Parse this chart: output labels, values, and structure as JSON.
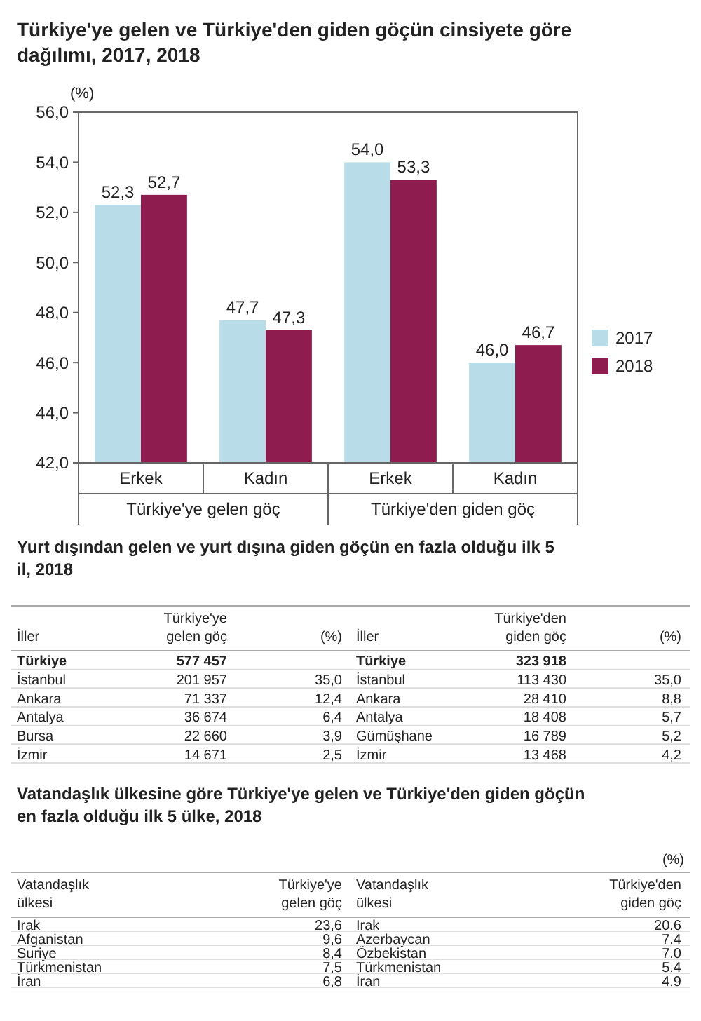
{
  "chart_data": [
    {
      "type": "bar",
      "title": "Türkiye'ye gelen ve Türkiye'den giden göçün cinsiyete göre dağılımı, 2017, 2018",
      "ylabel": "(%)",
      "categories": [
        "Erkek",
        "Kadın",
        "Erkek",
        "Kadın"
      ],
      "series": [
        {
          "name": "2017",
          "color": "#b8dde9",
          "values": [
            52.3,
            47.7,
            54.0,
            46.0
          ],
          "value_labels": [
            "52,3",
            "47,7",
            "54,0",
            "46,0"
          ]
        },
        {
          "name": "2018",
          "color": "#8e1c4f",
          "values": [
            52.7,
            47.3,
            53.3,
            46.7
          ],
          "value_labels": [
            "52,7",
            "47,3",
            "53,3",
            "46,7"
          ]
        }
      ],
      "ylim": [
        42,
        56
      ],
      "yticks": [
        {
          "value": 42,
          "label": "42,0"
        },
        {
          "value": 44,
          "label": "44,0"
        },
        {
          "value": 46,
          "label": "46,0"
        },
        {
          "value": 48,
          "label": "48,0"
        },
        {
          "value": 50,
          "label": "50,0"
        },
        {
          "value": 52,
          "label": "52,0"
        },
        {
          "value": 54,
          "label": "54,0"
        },
        {
          "value": 56,
          "label": "56,0"
        }
      ],
      "legend": "right",
      "annotations": [
        "Türkiye'ye gelen göç",
        "Türkiye'den giden göç"
      ]
    },
    {
      "type": "other",
      "title": "Yurt dışından gelen ve yurt dışına giden göçün en fazla olduğu ilk 5 il, 2018",
      "categories": [
        "İller",
        "Türkiye'ye gelen göç",
        "(%)",
        "İller",
        "Türkiye'den giden göç",
        "(%)"
      ],
      "cell_labels": [
        [
          "Türkiye",
          "577 457",
          null,
          "Türkiye",
          "323 918",
          null
        ],
        [
          "İstanbul",
          "201 957",
          "35,0",
          "İstanbul",
          "113 430",
          "35,0"
        ],
        [
          "Ankara",
          "71 337",
          "12,4",
          "Ankara",
          "28 410",
          "8,8"
        ],
        [
          "Antalya",
          "36 674",
          "6,4",
          "Antalya",
          "18 408",
          "5,7"
        ],
        [
          "Bursa",
          "22 660",
          "3,9",
          "Gümüşhane",
          "16 789",
          "5,2"
        ],
        [
          "İzmir",
          "14 671",
          "2,5",
          "İzmir",
          "13 468",
          "4,2"
        ]
      ]
    },
    {
      "type": "other",
      "title": "Vatandaşlık ülkesine göre Türkiye'ye gelen ve Türkiye'den giden göçün en fazla olduğu ilk 5 ülke, 2018",
      "subtitle": "(%)",
      "categories": [
        "Vatandaşlık ülkesi",
        "Türkiye'ye gelen göç",
        "Vatandaşlık ülkesi",
        "Türkiye'den giden göç"
      ],
      "cell_labels": [
        [
          "Irak",
          "23,6",
          "Irak",
          "20,6"
        ],
        [
          "Afganistan",
          "9,6",
          "Azerbaycan",
          "7,4"
        ],
        [
          "Suriye",
          "8,4",
          "Özbekistan",
          "7,0"
        ],
        [
          "Türkmenistan",
          "7,5",
          "Türkmenistan",
          "5,4"
        ],
        [
          "İran",
          "6,8",
          "İran",
          "4,9"
        ]
      ]
    }
  ]
}
